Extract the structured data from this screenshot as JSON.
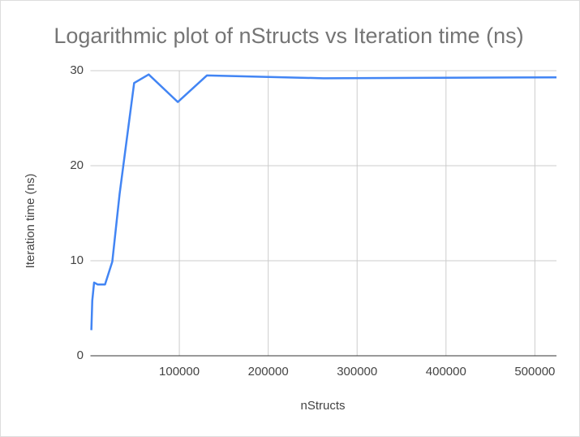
{
  "chart_data": {
    "type": "line",
    "title": "Logarithmic plot of nStructs vs Iteration time (ns)",
    "x_label": "nStructs",
    "y_label": "Iteration time (ns)",
    "x": [
      1024,
      2048,
      4096,
      8192,
      16384,
      24576,
      32768,
      49152,
      65536,
      98304,
      131072,
      262144,
      524288
    ],
    "series": [
      {
        "name": "Iteration time (ns)",
        "color": "#4285f4",
        "values": [
          2.7,
          5.8,
          7.7,
          7.5,
          7.5,
          9.9,
          17,
          28.7,
          29.6,
          26.7,
          29.5,
          29.2,
          29.3
        ]
      }
    ],
    "xlim": [
      0,
      524288
    ],
    "ylim": [
      0,
      30
    ],
    "xticks": [
      100000,
      200000,
      300000,
      400000,
      500000
    ],
    "yticks": [
      0,
      10,
      20,
      30
    ],
    "grid": true
  }
}
